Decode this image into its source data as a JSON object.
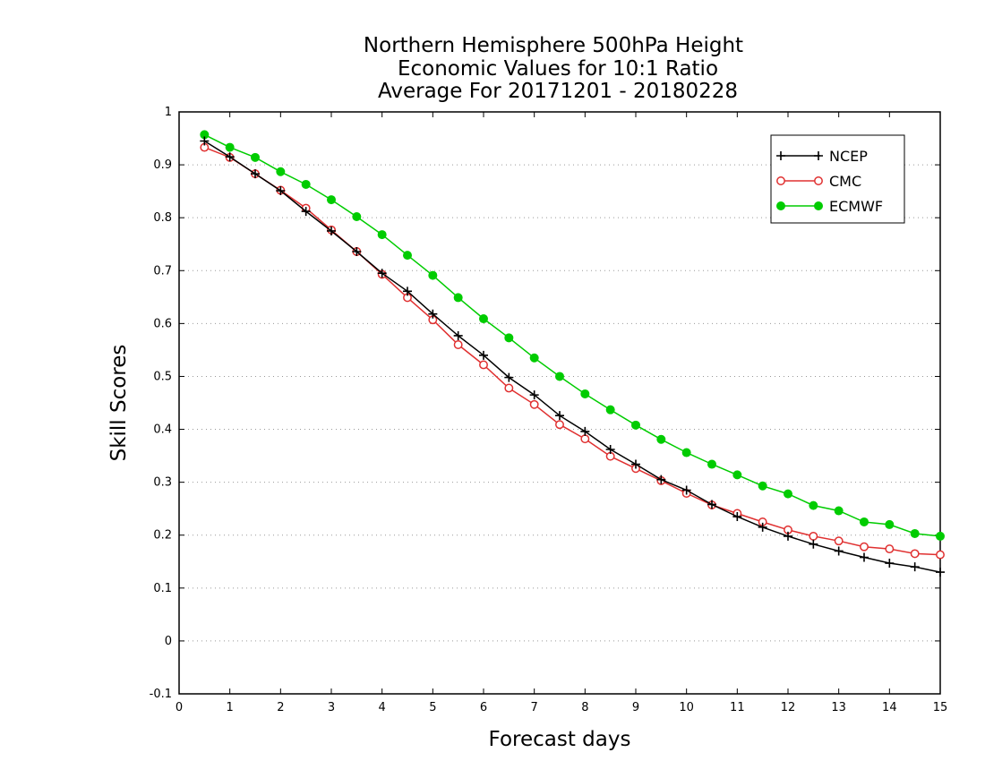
{
  "chart_data": {
    "type": "line",
    "title": [
      "Northern Hemisphere 500hPa Height",
      "Economic Values for 10:1 Ratio",
      "Average For 20171201 - 20180228"
    ],
    "xlabel": "Forecast days",
    "ylabel": "Skill Scores",
    "xlim": [
      0,
      15
    ],
    "ylim": [
      -0.1,
      1
    ],
    "xticks": [
      0,
      1,
      2,
      3,
      4,
      5,
      6,
      7,
      8,
      9,
      10,
      11,
      12,
      13,
      14,
      15
    ],
    "yticks": [
      -0.1,
      0,
      0.1,
      0.2,
      0.3,
      0.4,
      0.5,
      0.6,
      0.7,
      0.8,
      0.9,
      1
    ],
    "ytick_labels": [
      "-0.1",
      "0",
      "0.1",
      "0.2",
      "0.3",
      "0.4",
      "0.5",
      "0.6",
      "0.7",
      "0.8",
      "0.9",
      "1"
    ],
    "grid": "horizontal dotted",
    "legend_position": "top-right",
    "x": [
      0.5,
      1,
      1.5,
      2,
      2.5,
      3,
      3.5,
      4,
      4.5,
      5,
      5.5,
      6,
      6.5,
      7,
      7.5,
      8,
      8.5,
      9,
      9.5,
      10,
      10.5,
      11,
      11.5,
      12,
      12.5,
      13,
      13.5,
      14,
      14.5,
      15
    ],
    "series": [
      {
        "name": "NCEP",
        "color": "#000000",
        "marker": "plus",
        "values": [
          0.945,
          0.915,
          0.883,
          0.851,
          0.812,
          0.775,
          0.736,
          0.695,
          0.661,
          0.618,
          0.577,
          0.54,
          0.498,
          0.465,
          0.426,
          0.396,
          0.362,
          0.334,
          0.305,
          0.285,
          0.258,
          0.235,
          0.215,
          0.198,
          0.183,
          0.17,
          0.158,
          0.147,
          0.14,
          0.13
        ]
      },
      {
        "name": "CMC",
        "color": "#e03030",
        "marker": "open-circle",
        "values": [
          0.933,
          0.914,
          0.883,
          0.852,
          0.818,
          0.777,
          0.736,
          0.693,
          0.649,
          0.607,
          0.56,
          0.522,
          0.478,
          0.447,
          0.409,
          0.382,
          0.349,
          0.326,
          0.303,
          0.279,
          0.257,
          0.241,
          0.225,
          0.21,
          0.198,
          0.189,
          0.178,
          0.174,
          0.165,
          0.163
        ]
      },
      {
        "name": "ECMWF",
        "color": "#00cc00",
        "marker": "filled-circle",
        "values": [
          0.957,
          0.933,
          0.914,
          0.887,
          0.863,
          0.834,
          0.802,
          0.768,
          0.729,
          0.691,
          0.649,
          0.609,
          0.573,
          0.535,
          0.5,
          0.467,
          0.437,
          0.408,
          0.381,
          0.356,
          0.334,
          0.314,
          0.293,
          0.278,
          0.256,
          0.246,
          0.225,
          0.22,
          0.203,
          0.198
        ]
      }
    ]
  }
}
